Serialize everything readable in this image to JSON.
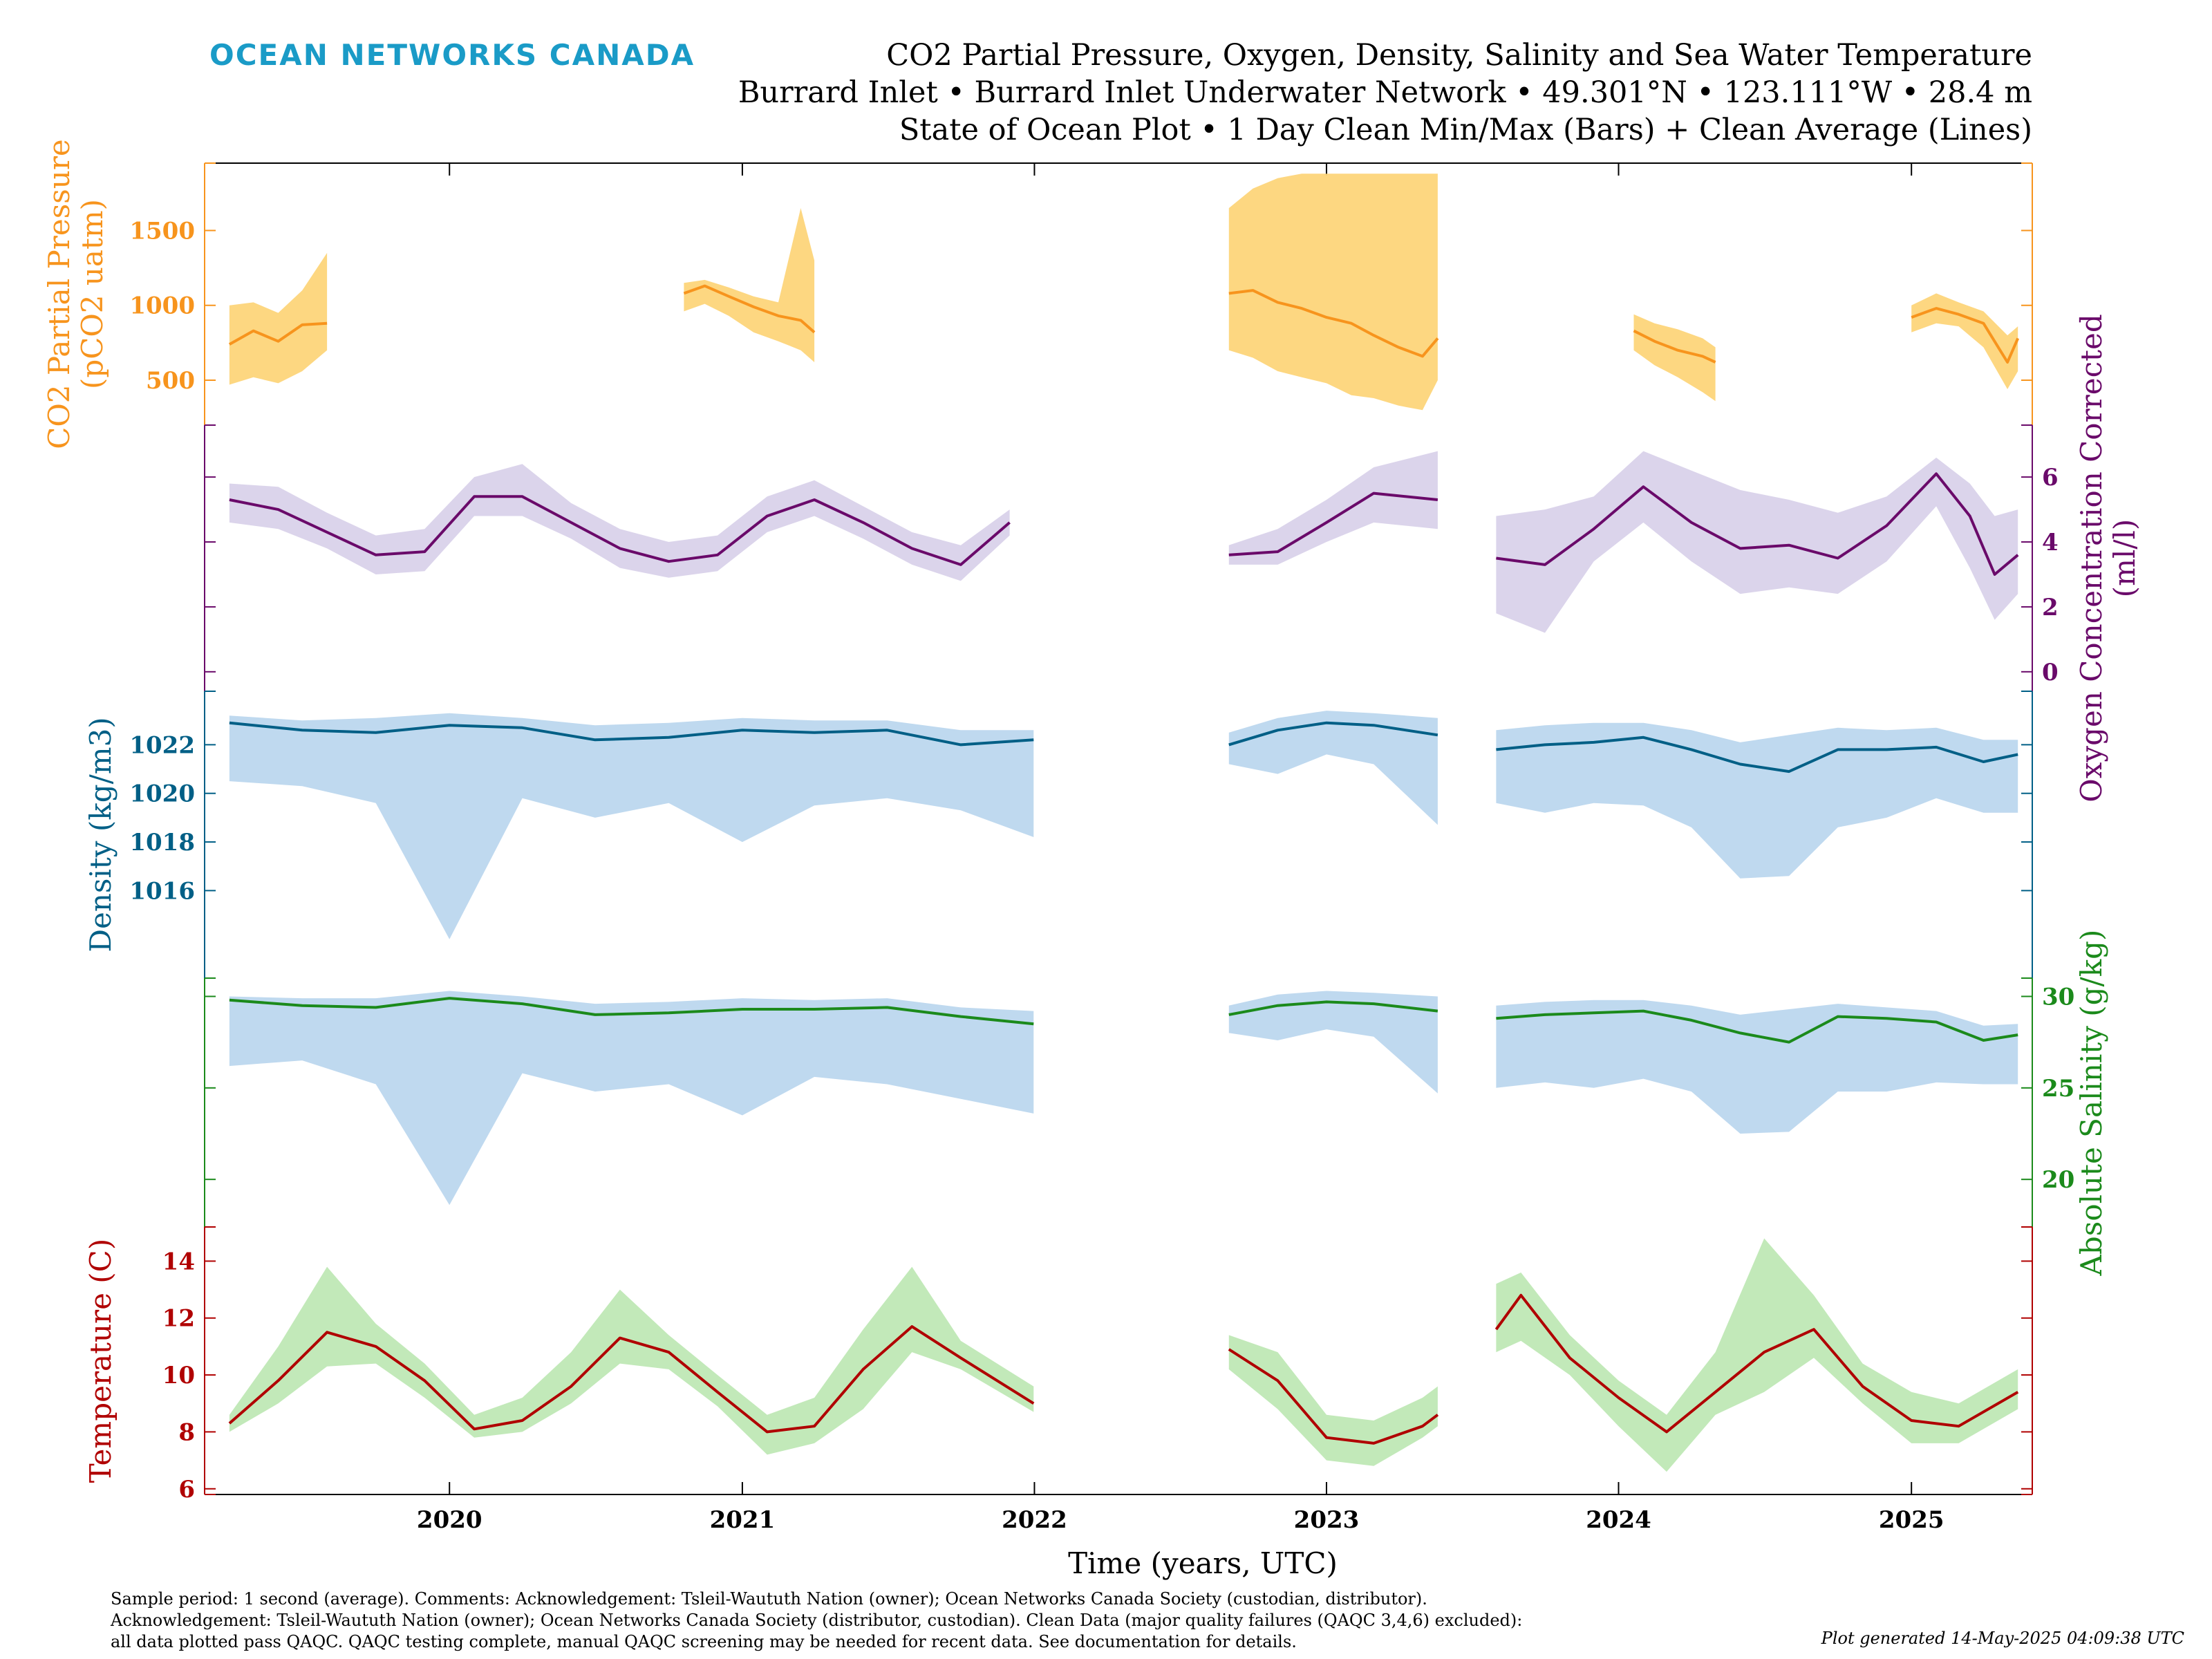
{
  "header": {
    "brand": "OCEAN NETWORKS CANADA",
    "title_lines": [
      "CO2 Partial Pressure, Oxygen, Density, Salinity and Sea Water Temperature",
      "Burrard Inlet • Burrard Inlet Underwater Network • 49.301°N • 123.111°W • 28.4 m",
      "State of Ocean Plot • 1 Day Clean Min/Max (Bars) + Clean Average (Lines)"
    ]
  },
  "colors": {
    "co2": "#f7941d",
    "co2_band": "#fdd57a",
    "oxygen": "#6a0a6a",
    "oxygen_band": "#d9d2ea",
    "density": "#005f86",
    "density_band": "#bcd7ee",
    "salinity": "#1b8a1b",
    "salinity_band": "#bcd7ee",
    "temperature": "#b00000",
    "temperature_band": "#bfe8b5",
    "brand": "#1a9bc7"
  },
  "chart_data": {
    "type": "line",
    "xlabel": "Time (years, UTC)",
    "x_ticks": [
      "2020",
      "2021",
      "2022",
      "2023",
      "2024",
      "2025"
    ],
    "xlim": [
      "2019-03-01",
      "2025-06-01"
    ],
    "panels": [
      {
        "id": "co2",
        "side": "left",
        "ylabel": "CO2 Partial Pressure",
        "ylabel2": "(pCO2 uatm)",
        "ylim": [
          200,
          1950
        ],
        "ticks": [
          500,
          1000,
          1500
        ],
        "segments": [
          {
            "x": [
              "2019-04-01",
              "2019-05-01",
              "2019-06-01",
              "2019-07-01",
              "2019-08-01"
            ],
            "avg": [
              740,
              830,
              760,
              870,
              880
            ],
            "min": [
              470,
              520,
              480,
              560,
              700
            ],
            "max": [
              1000,
              1020,
              950,
              1100,
              1350
            ]
          },
          {
            "x": [
              "2020-10-20",
              "2020-11-15",
              "2020-12-15",
              "2021-01-15",
              "2021-02-15",
              "2021-03-15",
              "2021-04-01"
            ],
            "avg": [
              1080,
              1130,
              1060,
              990,
              930,
              900,
              820
            ],
            "max": [
              1150,
              1170,
              1120,
              1060,
              1020,
              1650,
              1300
            ],
            "min": [
              960,
              1010,
              930,
              820,
              760,
              700,
              620
            ]
          },
          {
            "x": [
              "2022-09-01",
              "2022-10-01",
              "2022-11-01",
              "2022-12-01",
              "2023-01-01",
              "2023-02-01",
              "2023-03-01",
              "2023-04-01",
              "2023-05-01",
              "2023-05-20"
            ],
            "avg": [
              1080,
              1100,
              1020,
              980,
              920,
              880,
              800,
              720,
              660,
              780
            ],
            "max": [
              1650,
              1780,
              1850,
              1880,
              1880,
              1880,
              1880,
              1880,
              1880,
              1880
            ],
            "min": [
              700,
              650,
              560,
              520,
              480,
              400,
              380,
              330,
              300,
              500
            ]
          },
          {
            "x": [
              "2024-01-20",
              "2024-02-15",
              "2024-03-15",
              "2024-04-15",
              "2024-05-01"
            ],
            "avg": [
              830,
              760,
              700,
              660,
              620
            ],
            "max": [
              940,
              880,
              840,
              780,
              720
            ],
            "min": [
              700,
              600,
              520,
              420,
              360
            ]
          },
          {
            "x": [
              "2025-01-01",
              "2025-02-01",
              "2025-03-01",
              "2025-04-01",
              "2025-05-01",
              "2025-05-14"
            ],
            "avg": [
              920,
              980,
              940,
              880,
              620,
              780
            ],
            "max": [
              1000,
              1080,
              1020,
              960,
              800,
              860
            ],
            "min": [
              820,
              880,
              860,
              720,
              440,
              560
            ]
          }
        ]
      },
      {
        "id": "oxygen",
        "side": "right",
        "ylabel": "Oxygen Concentration Corrected",
        "ylabel2": "(ml/l)",
        "ylim": [
          -0.6,
          7.6
        ],
        "ticks": [
          0,
          2,
          4,
          6
        ],
        "segments": [
          {
            "x": [
              "2019-04-01",
              "2019-06-01",
              "2019-08-01",
              "2019-10-01",
              "2019-12-01",
              "2020-02-01",
              "2020-04-01",
              "2020-06-01",
              "2020-08-01",
              "2020-10-01",
              "2020-12-01",
              "2021-02-01",
              "2021-04-01",
              "2021-06-01",
              "2021-08-01",
              "2021-10-01",
              "2021-12-01"
            ],
            "avg": [
              5.3,
              5.0,
              4.3,
              3.6,
              3.7,
              5.4,
              5.4,
              4.6,
              3.8,
              3.4,
              3.6,
              4.8,
              5.3,
              4.6,
              3.8,
              3.3,
              4.6
            ],
            "min": [
              4.6,
              4.4,
              3.8,
              3.0,
              3.1,
              4.8,
              4.8,
              4.1,
              3.2,
              2.9,
              3.1,
              4.3,
              4.8,
              4.1,
              3.3,
              2.8,
              4.2
            ],
            "max": [
              5.8,
              5.7,
              4.9,
              4.2,
              4.4,
              6.0,
              6.4,
              5.2,
              4.4,
              4.0,
              4.2,
              5.4,
              5.9,
              5.1,
              4.3,
              3.9,
              5.0
            ]
          },
          {
            "x": [
              "2022-09-01",
              "2022-11-01",
              "2023-01-01",
              "2023-03-01",
              "2023-05-20"
            ],
            "avg": [
              3.6,
              3.7,
              4.6,
              5.5,
              5.3
            ],
            "min": [
              3.3,
              3.3,
              4.0,
              4.6,
              4.4
            ],
            "max": [
              3.9,
              4.4,
              5.3,
              6.3,
              6.8
            ]
          },
          {
            "x": [
              "2023-08-01",
              "2023-10-01",
              "2023-12-01",
              "2024-02-01",
              "2024-04-01",
              "2024-06-01",
              "2024-08-01",
              "2024-10-01",
              "2024-12-01",
              "2025-02-01",
              "2025-03-15",
              "2025-04-15",
              "2025-05-14"
            ],
            "avg": [
              3.5,
              3.3,
              4.4,
              5.7,
              4.6,
              3.8,
              3.9,
              3.5,
              4.5,
              6.1,
              4.8,
              3.0,
              3.6
            ],
            "min": [
              1.8,
              1.2,
              3.4,
              4.6,
              3.4,
              2.4,
              2.6,
              2.4,
              3.4,
              5.1,
              3.2,
              1.6,
              2.4
            ],
            "max": [
              4.8,
              5.0,
              5.4,
              6.8,
              6.2,
              5.6,
              5.3,
              4.9,
              5.4,
              6.6,
              5.8,
              4.8,
              5.0
            ]
          }
        ]
      },
      {
        "id": "density",
        "side": "left",
        "ylabel": "Density (kg/m3)",
        "ylim": [
          1012.4,
          1024.2
        ],
        "ticks": [
          1016,
          1018,
          1020,
          1022
        ],
        "segments": [
          {
            "x": [
              "2019-04-01",
              "2019-07-01",
              "2019-10-01",
              "2020-01-01",
              "2020-04-01",
              "2020-07-01",
              "2020-10-01",
              "2021-01-01",
              "2021-04-01",
              "2021-07-01",
              "2021-10-01",
              "2021-12-31"
            ],
            "avg": [
              1022.9,
              1022.6,
              1022.5,
              1022.8,
              1022.7,
              1022.2,
              1022.3,
              1022.6,
              1022.5,
              1022.6,
              1022.0,
              1022.2
            ],
            "min": [
              1020.5,
              1020.3,
              1019.6,
              1014.0,
              1019.8,
              1019.0,
              1019.6,
              1018.0,
              1019.5,
              1019.8,
              1019.3,
              1018.2
            ],
            "max": [
              1023.2,
              1023.0,
              1023.1,
              1023.3,
              1023.1,
              1022.8,
              1022.9,
              1023.1,
              1023.0,
              1023.0,
              1022.6,
              1022.6
            ]
          },
          {
            "x": [
              "2022-09-01",
              "2022-11-01",
              "2023-01-01",
              "2023-03-01",
              "2023-05-20"
            ],
            "avg": [
              1022.0,
              1022.6,
              1022.9,
              1022.8,
              1022.4
            ],
            "min": [
              1021.2,
              1020.8,
              1021.6,
              1021.2,
              1018.7
            ],
            "max": [
              1022.5,
              1023.1,
              1023.4,
              1023.3,
              1023.1
            ]
          },
          {
            "x": [
              "2023-08-01",
              "2023-10-01",
              "2023-12-01",
              "2024-02-01",
              "2024-04-01",
              "2024-06-01",
              "2024-08-01",
              "2024-10-01",
              "2024-12-01",
              "2025-02-01",
              "2025-04-01",
              "2025-05-14"
            ],
            "avg": [
              1021.8,
              1022.0,
              1022.1,
              1022.3,
              1021.8,
              1021.2,
              1020.9,
              1021.8,
              1021.8,
              1021.9,
              1021.3,
              1021.6
            ],
            "min": [
              1019.6,
              1019.2,
              1019.6,
              1019.5,
              1018.6,
              1016.5,
              1016.6,
              1018.6,
              1019.0,
              1019.8,
              1019.2,
              1019.2
            ],
            "max": [
              1022.6,
              1022.8,
              1022.9,
              1022.9,
              1022.6,
              1022.1,
              1022.4,
              1022.7,
              1022.6,
              1022.7,
              1022.2,
              1022.2
            ]
          }
        ]
      },
      {
        "id": "salinity",
        "side": "right",
        "ylabel": "Absolute Salinity (g/kg)",
        "ylim": [
          17.4,
          31.0
        ],
        "ticks": [
          20,
          25,
          30
        ],
        "segments": [
          {
            "x": [
              "2019-04-01",
              "2019-07-01",
              "2019-10-01",
              "2020-01-01",
              "2020-04-01",
              "2020-07-01",
              "2020-10-01",
              "2021-01-01",
              "2021-04-01",
              "2021-07-01",
              "2021-10-01",
              "2021-12-31"
            ],
            "avg": [
              29.8,
              29.5,
              29.4,
              29.9,
              29.6,
              29.0,
              29.1,
              29.3,
              29.3,
              29.4,
              28.9,
              28.5
            ],
            "min": [
              26.2,
              26.5,
              25.2,
              18.6,
              25.8,
              24.8,
              25.2,
              23.5,
              25.6,
              25.2,
              24.4,
              23.6
            ],
            "max": [
              30.0,
              29.9,
              29.9,
              30.3,
              30.0,
              29.6,
              29.7,
              29.9,
              29.8,
              29.9,
              29.4,
              29.2
            ]
          },
          {
            "x": [
              "2022-09-01",
              "2022-11-01",
              "2023-01-01",
              "2023-03-01",
              "2023-05-20"
            ],
            "avg": [
              29.0,
              29.5,
              29.7,
              29.6,
              29.2
            ],
            "min": [
              28.0,
              27.6,
              28.2,
              27.8,
              24.7
            ],
            "max": [
              29.5,
              30.1,
              30.3,
              30.2,
              30.0
            ]
          },
          {
            "x": [
              "2023-08-01",
              "2023-10-01",
              "2023-12-01",
              "2024-02-01",
              "2024-04-01",
              "2024-06-01",
              "2024-08-01",
              "2024-10-01",
              "2024-12-01",
              "2025-02-01",
              "2025-04-01",
              "2025-05-14"
            ],
            "avg": [
              28.8,
              29.0,
              29.1,
              29.2,
              28.7,
              28.0,
              27.5,
              28.9,
              28.8,
              28.6,
              27.6,
              27.9
            ],
            "min": [
              25.0,
              25.3,
              25.0,
              25.5,
              24.8,
              22.5,
              22.6,
              24.8,
              24.8,
              25.3,
              25.2,
              25.2
            ],
            "max": [
              29.5,
              29.7,
              29.8,
              29.8,
              29.5,
              29.0,
              29.3,
              29.6,
              29.4,
              29.2,
              28.4,
              28.5
            ]
          }
        ]
      },
      {
        "id": "temperature",
        "side": "left",
        "ylabel": "Temperature (C)",
        "ylim": [
          5.8,
          15.2
        ],
        "ticks": [
          6,
          8,
          10,
          12,
          14
        ],
        "segments": [
          {
            "x": [
              "2019-04-01",
              "2019-06-01",
              "2019-08-01",
              "2019-10-01",
              "2019-12-01",
              "2020-02-01",
              "2020-04-01",
              "2020-06-01",
              "2020-08-01",
              "2020-10-01",
              "2020-12-01",
              "2021-02-01",
              "2021-04-01",
              "2021-06-01",
              "2021-08-01",
              "2021-10-01",
              "2021-12-31"
            ],
            "avg": [
              8.3,
              9.8,
              11.5,
              11.0,
              9.8,
              8.1,
              8.4,
              9.6,
              11.3,
              10.8,
              9.4,
              8.0,
              8.2,
              10.2,
              11.7,
              10.6,
              9.0
            ],
            "min": [
              8.0,
              9.0,
              10.3,
              10.4,
              9.2,
              7.8,
              8.0,
              9.0,
              10.4,
              10.2,
              8.9,
              7.2,
              7.6,
              8.8,
              10.8,
              10.2,
              8.7
            ],
            "max": [
              8.6,
              11.0,
              13.8,
              11.8,
              10.4,
              8.6,
              9.2,
              10.8,
              13.0,
              11.4,
              10.0,
              8.6,
              9.2,
              11.6,
              13.8,
              11.2,
              9.6
            ]
          },
          {
            "x": [
              "2022-09-01",
              "2022-11-01",
              "2023-01-01",
              "2023-03-01",
              "2023-05-01",
              "2023-05-20"
            ],
            "avg": [
              10.9,
              9.8,
              7.8,
              7.6,
              8.2,
              8.6
            ],
            "min": [
              10.2,
              8.8,
              7.0,
              6.8,
              7.8,
              8.2
            ],
            "max": [
              11.4,
              10.8,
              8.6,
              8.4,
              9.2,
              9.6
            ]
          },
          {
            "x": [
              "2023-08-01",
              "2023-09-01",
              "2023-11-01",
              "2024-01-01",
              "2024-03-01",
              "2024-05-01",
              "2024-07-01",
              "2024-09-01",
              "2024-11-01",
              "2025-01-01",
              "2025-03-01",
              "2025-05-14"
            ],
            "avg": [
              11.6,
              12.8,
              10.6,
              9.2,
              8.0,
              9.4,
              10.8,
              11.6,
              9.6,
              8.4,
              8.2,
              9.4
            ],
            "min": [
              10.8,
              11.2,
              10.0,
              8.2,
              6.6,
              8.6,
              9.4,
              10.6,
              9.0,
              7.6,
              7.6,
              8.8
            ],
            "max": [
              13.2,
              13.6,
              11.4,
              9.8,
              8.6,
              10.8,
              14.8,
              12.8,
              10.4,
              9.4,
              9.0,
              10.2
            ]
          }
        ]
      }
    ]
  },
  "footer": {
    "lines": [
      "Sample period: 1 second (average). Comments: Acknowledgement: Tsleil-Waututh Nation (owner); Ocean Networks Canada Society (custodian, distributor).",
      "Acknowledgement: Tsleil-Waututh Nation (owner); Ocean Networks Canada Society (distributor, custodian). Clean Data (major quality failures (QAQC 3,4,6) excluded):",
      "all data plotted pass QAQC. QAQC testing complete, manual QAQC screening may be needed for recent data. See documentation for details."
    ],
    "generated": "Plot generated 14-May-2025 04:09:38 UTC"
  }
}
